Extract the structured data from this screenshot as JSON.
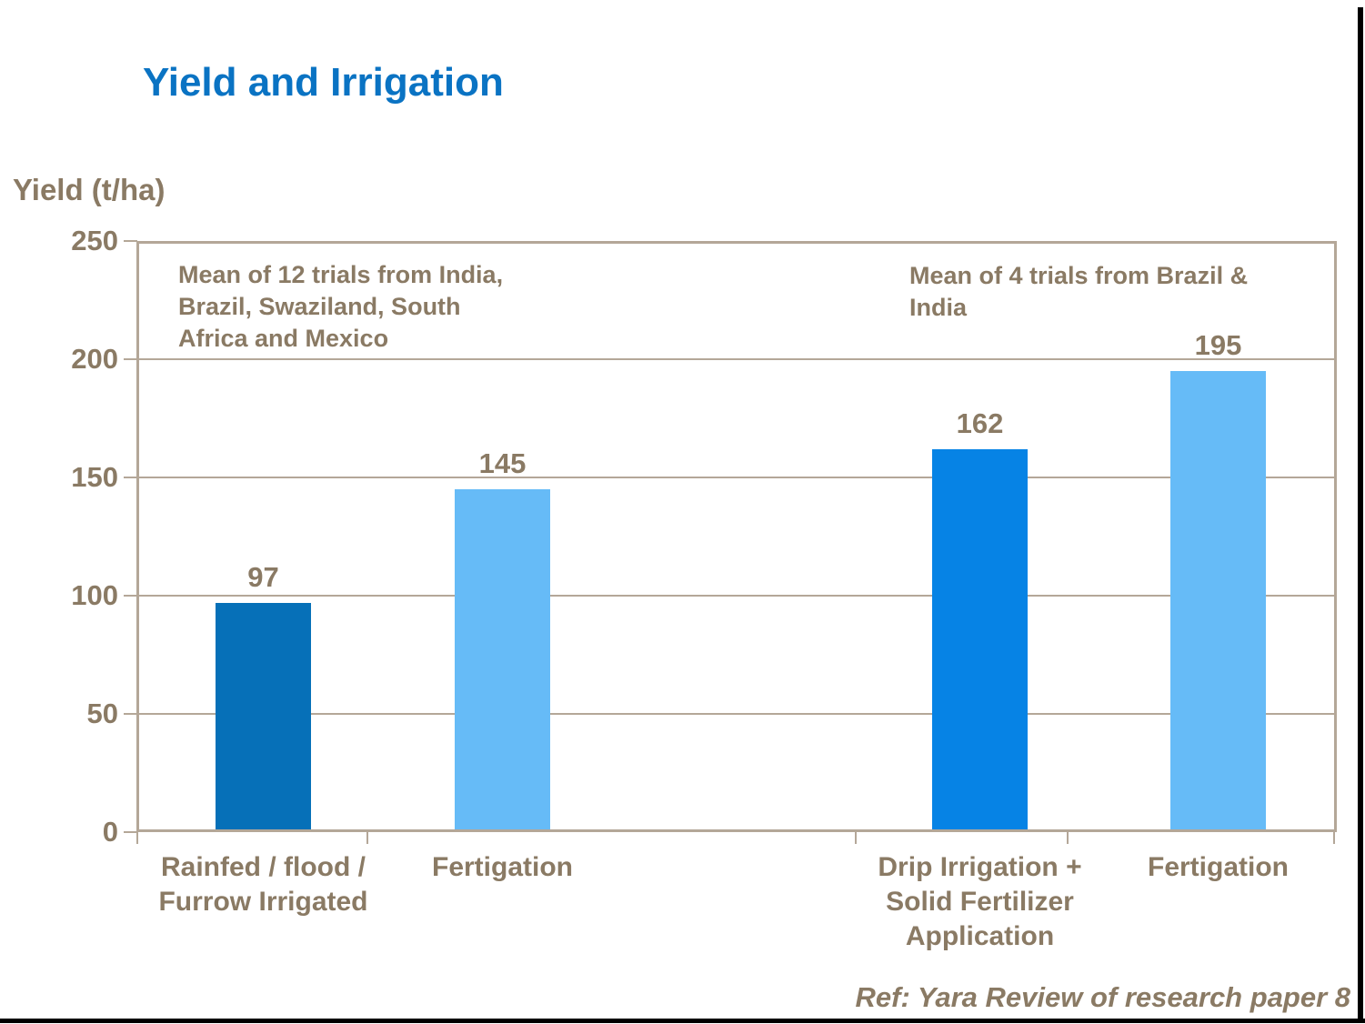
{
  "title": "Yield and Irrigation",
  "footer": "Ref: Yara Review of research paper 8",
  "chart_data": {
    "type": "bar",
    "title": "Yield and Irrigation",
    "ylabel": "Yield (t/ha)",
    "xlabel": "",
    "ylim": [
      0,
      250
    ],
    "ytick_interval": 50,
    "yticks": [
      0,
      50,
      100,
      150,
      200,
      250
    ],
    "grid": true,
    "legend": false,
    "categories": [
      "Rainfed / flood / Furrow Irrigated",
      "Fertigation",
      "Drip Irrigation + Solid Fertilizer Application",
      "Fertigation"
    ],
    "category_display": [
      "Rainfed / flood /\nFurrow Irrigated",
      "Fertigation",
      "Drip Irrigation +\nSolid Fertilizer\nApplication",
      "Fertigation"
    ],
    "values": [
      97,
      145,
      162,
      195
    ],
    "value_labels": [
      "97",
      "145",
      "162",
      "195"
    ],
    "bar_colors": [
      "#0670b8",
      "#66bbf7",
      "#0683e5",
      "#66bbf7"
    ],
    "annotations": [
      "Mean of 12 trials from India,\nBrazil, Swaziland, South\nAfrica and Mexico",
      "Mean of 4 trials from Brazil &\nIndia"
    ],
    "colors": {
      "title_blue": "#0a73c3",
      "text_tan": "#8a7a64",
      "axis_gray_tan": "#b4a798",
      "dark_blue_bar": "#0670b8",
      "medium_blue_bar": "#0683e5",
      "light_blue_bar": "#66bbf7"
    },
    "footnote": "Ref: Yara Review of research paper 8"
  }
}
